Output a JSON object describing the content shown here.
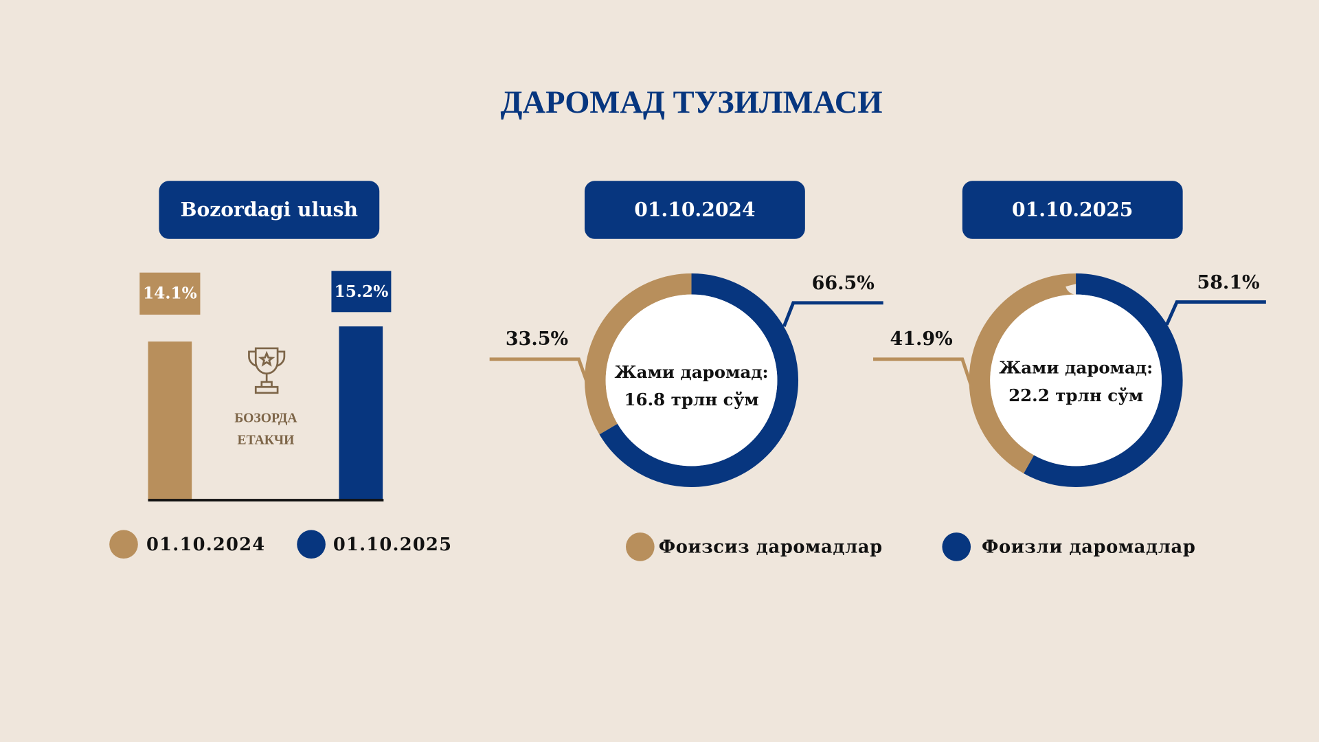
{
  "title": "ДАРОМАД ТУЗИЛМАСИ",
  "colors": {
    "tan": "#b88f5c",
    "blue": "#07367f",
    "background": "#efe6dc"
  },
  "chart_data": [
    {
      "type": "bar",
      "title": "Bozordagi ulush",
      "categories": [
        "01.10.2024",
        "01.10.2025"
      ],
      "values": [
        14.1,
        15.2
      ],
      "labels": [
        "14.1%",
        "15.2%"
      ],
      "annotation": [
        "БОЗОРДА",
        "ЕТАКЧИ"
      ],
      "legend": [
        "01.10.2024",
        "01.10.2025"
      ]
    },
    {
      "type": "pie",
      "title": "01.10.2024",
      "slices": [
        {
          "name": "Фоизли даромадлар",
          "value": 66.5,
          "label": "66.5%"
        },
        {
          "name": "Фоизсиз даромадлар",
          "value": 33.5,
          "label": "33.5%"
        }
      ],
      "center": [
        "Жами даромад:",
        "16.8 трлн сўм"
      ]
    },
    {
      "type": "pie",
      "title": "01.10.2025",
      "slices": [
        {
          "name": "Фоизли даромадлар",
          "value": 58.1,
          "label": "58.1%"
        },
        {
          "name": "Фоизсиз даромадлар",
          "value": 41.9,
          "label": "41.9%"
        }
      ],
      "center": [
        "Жами даромад:",
        "22.2 трлн сўм"
      ]
    }
  ],
  "donut_legend": [
    "Фоизсиз даромадлар",
    "Фоизли даромадлар"
  ]
}
